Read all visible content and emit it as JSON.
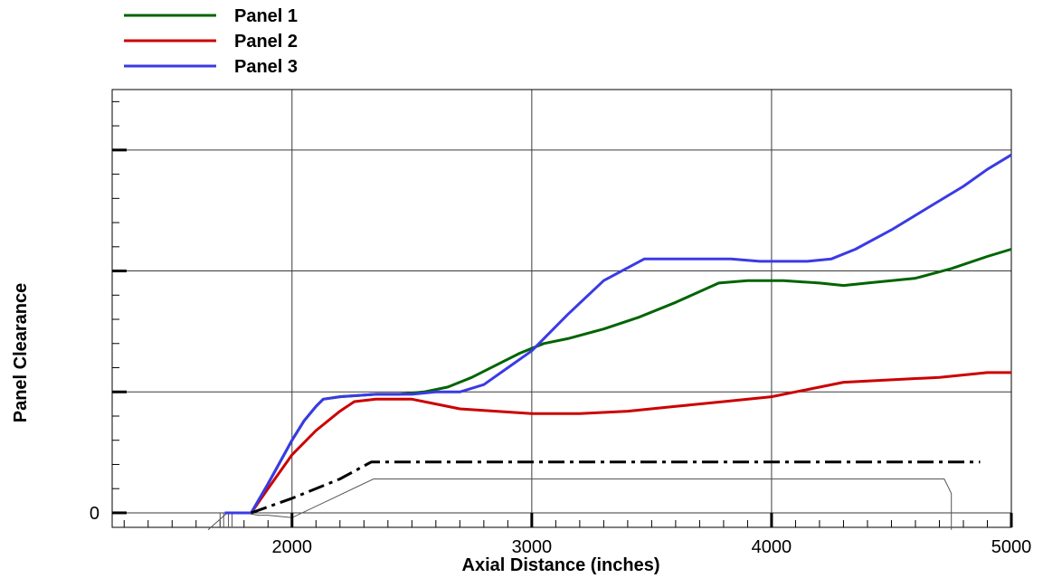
{
  "chart_data": {
    "type": "line",
    "title": "",
    "xlabel": "Axial Distance (inches)",
    "ylabel": "Panel Clearance",
    "xlim": [
      1250,
      5000
    ],
    "ylim": [
      -0.06,
      1.75
    ],
    "x_ticks": [
      2000,
      3000,
      4000,
      5000
    ],
    "y_ticks": [
      0
    ],
    "y_gridlines": [
      0.5,
      1.0,
      1.5
    ],
    "grid": true,
    "legend_position": "top-left, above plot",
    "series": [
      {
        "name": "Panel 1",
        "color": "#006400",
        "x": [
          1720,
          1830,
          1900,
          2000,
          2050,
          2100,
          2130,
          2200,
          2350,
          2450,
          2550,
          2650,
          2750,
          2850,
          2950,
          3050,
          3150,
          3300,
          3450,
          3600,
          3780,
          3900,
          4050,
          4200,
          4300,
          4400,
          4500,
          4600,
          4750,
          4900,
          5000
        ],
        "y": [
          0.0,
          0.0,
          0.12,
          0.3,
          0.38,
          0.44,
          0.47,
          0.48,
          0.49,
          0.49,
          0.5,
          0.52,
          0.56,
          0.61,
          0.66,
          0.7,
          0.72,
          0.76,
          0.81,
          0.87,
          0.95,
          0.96,
          0.96,
          0.95,
          0.94,
          0.95,
          0.96,
          0.97,
          1.01,
          1.06,
          1.09
        ]
      },
      {
        "name": "Panel 2",
        "color": "#cc0000",
        "x": [
          1720,
          1830,
          1900,
          2000,
          2100,
          2200,
          2260,
          2350,
          2500,
          2600,
          2700,
          2850,
          3000,
          3200,
          3400,
          3600,
          3800,
          4000,
          4150,
          4300,
          4500,
          4700,
          4900,
          5000
        ],
        "y": [
          0.0,
          0.0,
          0.1,
          0.24,
          0.34,
          0.42,
          0.46,
          0.47,
          0.47,
          0.45,
          0.43,
          0.42,
          0.41,
          0.41,
          0.42,
          0.44,
          0.46,
          0.48,
          0.51,
          0.54,
          0.55,
          0.56,
          0.58,
          0.58
        ]
      },
      {
        "name": "Panel 3",
        "color": "#3a3ae6",
        "x": [
          1720,
          1830,
          1900,
          2000,
          2050,
          2100,
          2130,
          2200,
          2350,
          2500,
          2600,
          2700,
          2800,
          2900,
          3000,
          3150,
          3300,
          3470,
          3600,
          3700,
          3830,
          3950,
          4050,
          4150,
          4250,
          4350,
          4500,
          4650,
          4800,
          4900,
          5000
        ],
        "y": [
          0.0,
          0.0,
          0.12,
          0.3,
          0.38,
          0.44,
          0.47,
          0.48,
          0.49,
          0.49,
          0.5,
          0.5,
          0.53,
          0.6,
          0.67,
          0.82,
          0.96,
          1.05,
          1.05,
          1.05,
          1.05,
          1.04,
          1.04,
          1.04,
          1.05,
          1.09,
          1.17,
          1.26,
          1.35,
          1.42,
          1.48
        ]
      },
      {
        "name": "",
        "color": "#000000",
        "dash": "dash-dot",
        "x": [
          1830,
          2000,
          2200,
          2330,
          4870
        ],
        "y": [
          0.0,
          0.06,
          0.14,
          0.21,
          0.21
        ]
      }
    ],
    "outline_profile": {
      "x": [
        1650,
        1730,
        1800,
        1860,
        1900,
        2000,
        2170,
        2340,
        4480,
        4720,
        4740,
        4750,
        4750
      ],
      "y": [
        -0.07,
        0.0,
        0.0,
        -0.01,
        -0.01,
        -0.02,
        0.06,
        0.14,
        0.14,
        0.14,
        0.1,
        0.08,
        -0.07
      ]
    }
  },
  "colors": {
    "grid": "#3a3a3a",
    "axis": "#000000",
    "profile": "#555555"
  }
}
